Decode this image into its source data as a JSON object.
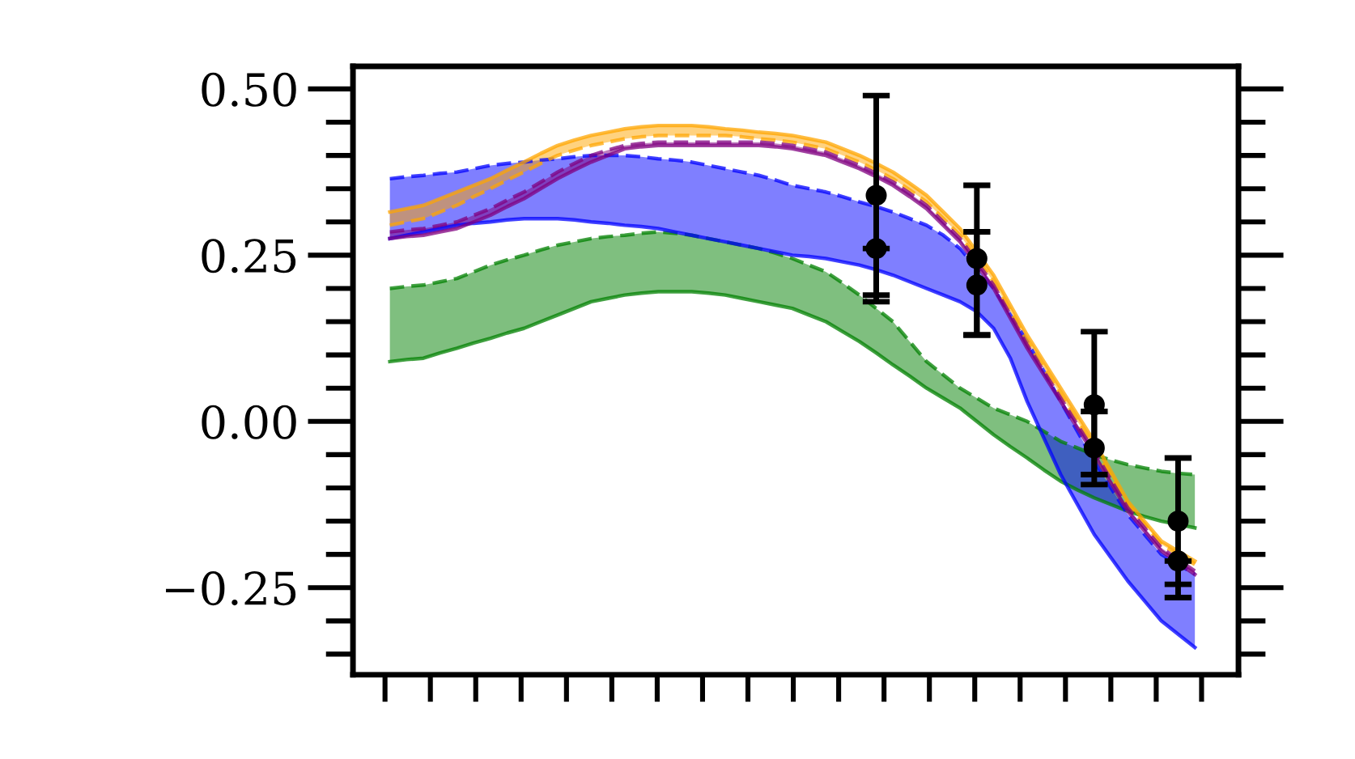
{
  "chart_data": {
    "type": "line",
    "categories": [
      null,
      null,
      null,
      null,
      null,
      null,
      null,
      null,
      null,
      null,
      null,
      null,
      null,
      null,
      null,
      null,
      null,
      null,
      null,
      null,
      null,
      null,
      null,
      null,
      null,
      null,
      null,
      null,
      null,
      null,
      null,
      null,
      null,
      null,
      null,
      null,
      null,
      null,
      null,
      null,
      null,
      null,
      null,
      null,
      null,
      null,
      null,
      null,
      null
    ],
    "ylim": [
      -0.381,
      0.534
    ],
    "yticks": [
      {
        "value": -0.25,
        "label": "−0.25"
      },
      {
        "value": 0,
        "label": "0.00"
      },
      {
        "value": 0.25,
        "label": "0.25"
      },
      {
        "value": 0.5,
        "label": "0.50"
      }
    ],
    "tick_labels": "y",
    "grid": false,
    "series": [
      {
        "color": "#008000",
        "line_style": "dashed",
        "values": [
          0.2,
          0.203,
          0.205,
          0.21,
          0.215,
          0.225,
          0.235,
          0.243,
          0.25,
          0.258,
          0.265,
          0.27,
          0.275,
          0.278,
          0.28,
          0.283,
          0.285,
          0.283,
          0.28,
          0.275,
          0.27,
          0.265,
          0.26,
          0.253,
          0.245,
          0.235,
          0.225,
          0.208,
          0.19,
          0.17,
          0.15,
          0.12,
          0.09,
          0.07,
          0.05,
          0.035,
          0.02,
          0.01,
          0.0,
          -0.015,
          -0.03,
          -0.04,
          -0.05,
          -0.058,
          -0.065,
          -0.07,
          -0.075,
          -0.078,
          -0.08
        ],
        "lower": [
          0.09,
          0.093,
          0.095,
          0.103,
          0.11,
          0.118,
          0.125,
          0.133,
          0.14,
          0.15,
          0.16,
          0.17,
          0.18,
          0.185,
          0.19,
          0.193,
          0.195,
          0.195,
          0.195,
          0.193,
          0.19,
          0.185,
          0.18,
          0.175,
          0.17,
          0.16,
          0.15,
          0.135,
          0.12,
          0.103,
          0.085,
          0.068,
          0.05,
          0.035,
          0.02,
          0.0,
          -0.02,
          -0.038,
          -0.055,
          -0.073,
          -0.09,
          -0.103,
          -0.115,
          -0.125,
          -0.135,
          -0.143,
          -0.15,
          -0.155,
          -0.16
        ],
        "upper": [
          0.2,
          0.203,
          0.205,
          0.21,
          0.215,
          0.225,
          0.235,
          0.243,
          0.25,
          0.258,
          0.265,
          0.27,
          0.275,
          0.278,
          0.28,
          0.283,
          0.285,
          0.283,
          0.28,
          0.275,
          0.27,
          0.265,
          0.26,
          0.253,
          0.245,
          0.235,
          0.225,
          0.208,
          0.19,
          0.17,
          0.15,
          0.12,
          0.09,
          0.07,
          0.05,
          0.035,
          0.02,
          0.01,
          0.0,
          -0.015,
          -0.03,
          -0.04,
          -0.05,
          -0.058,
          -0.065,
          -0.07,
          -0.075,
          -0.078,
          -0.08
        ]
      },
      {
        "color": "#008000",
        "line_style": "solid",
        "values": [
          0.09,
          0.093,
          0.095,
          0.103,
          0.11,
          0.118,
          0.125,
          0.133,
          0.14,
          0.15,
          0.16,
          0.17,
          0.18,
          0.185,
          0.19,
          0.193,
          0.195,
          0.195,
          0.195,
          0.193,
          0.19,
          0.185,
          0.18,
          0.175,
          0.17,
          0.16,
          0.15,
          0.135,
          0.12,
          0.103,
          0.085,
          0.068,
          0.05,
          0.035,
          0.02,
          0.0,
          -0.02,
          -0.038,
          -0.055,
          -0.073,
          -0.09,
          -0.103,
          -0.115,
          -0.125,
          -0.135,
          -0.143,
          -0.15,
          -0.155,
          -0.16
        ]
      },
      {
        "color": "#0000ff",
        "line_style": "dashed",
        "values": [
          0.365,
          0.368,
          0.37,
          0.373,
          0.375,
          0.38,
          0.385,
          0.388,
          0.39,
          0.393,
          0.395,
          0.398,
          0.4,
          0.4,
          0.4,
          0.398,
          0.395,
          0.393,
          0.39,
          0.385,
          0.38,
          0.375,
          0.37,
          0.363,
          0.355,
          0.35,
          0.345,
          0.338,
          0.33,
          0.323,
          0.315,
          0.305,
          0.295,
          0.28,
          0.26,
          0.23,
          0.2,
          0.16,
          0.12,
          0.075,
          0.03,
          -0.015,
          -0.06,
          -0.1,
          -0.14,
          -0.17,
          -0.2,
          -0.215,
          -0.23
        ],
        "lower": [
          0.275,
          0.28,
          0.285,
          0.29,
          0.295,
          0.298,
          0.3,
          0.303,
          0.305,
          0.305,
          0.305,
          0.303,
          0.3,
          0.298,
          0.295,
          0.293,
          0.29,
          0.285,
          0.28,
          0.275,
          0.27,
          0.265,
          0.26,
          0.255,
          0.25,
          0.248,
          0.245,
          0.24,
          0.235,
          0.228,
          0.22,
          0.21,
          0.2,
          0.19,
          0.18,
          0.165,
          0.14,
          0.095,
          0.03,
          -0.025,
          -0.08,
          -0.125,
          -0.17,
          -0.205,
          -0.24,
          -0.27,
          -0.3,
          -0.32,
          -0.34
        ],
        "upper": [
          0.365,
          0.368,
          0.37,
          0.373,
          0.375,
          0.38,
          0.385,
          0.388,
          0.39,
          0.393,
          0.395,
          0.398,
          0.4,
          0.4,
          0.4,
          0.398,
          0.395,
          0.393,
          0.39,
          0.385,
          0.38,
          0.375,
          0.37,
          0.363,
          0.355,
          0.35,
          0.345,
          0.338,
          0.33,
          0.323,
          0.315,
          0.305,
          0.295,
          0.28,
          0.26,
          0.23,
          0.2,
          0.16,
          0.12,
          0.075,
          0.03,
          -0.015,
          -0.06,
          -0.1,
          -0.14,
          -0.17,
          -0.2,
          -0.215,
          -0.23
        ]
      },
      {
        "color": "#0000ff",
        "line_style": "solid",
        "values": [
          0.275,
          0.28,
          0.285,
          0.29,
          0.295,
          0.298,
          0.3,
          0.303,
          0.305,
          0.305,
          0.305,
          0.303,
          0.3,
          0.298,
          0.295,
          0.293,
          0.29,
          0.285,
          0.28,
          0.275,
          0.27,
          0.265,
          0.26,
          0.255,
          0.25,
          0.248,
          0.245,
          0.24,
          0.235,
          0.228,
          0.22,
          0.21,
          0.2,
          0.19,
          0.18,
          0.165,
          0.14,
          0.095,
          0.03,
          -0.025,
          -0.08,
          -0.125,
          -0.17,
          -0.205,
          -0.24,
          -0.27,
          -0.3,
          -0.32,
          -0.34
        ]
      },
      {
        "color": "#ffa500",
        "line_style": "dashed",
        "values": [
          0.295,
          0.3,
          0.305,
          0.315,
          0.325,
          0.338,
          0.35,
          0.363,
          0.375,
          0.388,
          0.4,
          0.408,
          0.415,
          0.42,
          0.425,
          0.428,
          0.43,
          0.43,
          0.43,
          0.43,
          0.43,
          0.428,
          0.425,
          0.423,
          0.42,
          0.415,
          0.41,
          0.4,
          0.39,
          0.378,
          0.365,
          0.348,
          0.33,
          0.305,
          0.28,
          0.245,
          0.21,
          0.165,
          0.12,
          0.08,
          0.04,
          0.0,
          -0.04,
          -0.083,
          -0.125,
          -0.155,
          -0.185,
          -0.2,
          -0.215
        ],
        "lower": [
          0.295,
          0.3,
          0.305,
          0.315,
          0.325,
          0.338,
          0.35,
          0.363,
          0.375,
          0.388,
          0.4,
          0.408,
          0.415,
          0.42,
          0.425,
          0.428,
          0.43,
          0.43,
          0.43,
          0.43,
          0.43,
          0.428,
          0.425,
          0.423,
          0.42,
          0.415,
          0.41,
          0.4,
          0.39,
          0.378,
          0.365,
          0.348,
          0.33,
          0.305,
          0.28,
          0.245,
          0.21,
          0.165,
          0.12,
          0.08,
          0.04,
          0.0,
          -0.04,
          -0.083,
          -0.125,
          -0.155,
          -0.185,
          -0.2,
          -0.215
        ],
        "upper": [
          0.315,
          0.32,
          0.325,
          0.335,
          0.345,
          0.355,
          0.365,
          0.378,
          0.39,
          0.403,
          0.415,
          0.423,
          0.43,
          0.435,
          0.44,
          0.443,
          0.445,
          0.445,
          0.445,
          0.443,
          0.44,
          0.438,
          0.435,
          0.433,
          0.43,
          0.425,
          0.42,
          0.41,
          0.4,
          0.388,
          0.375,
          0.358,
          0.34,
          0.315,
          0.29,
          0.255,
          0.22,
          0.175,
          0.13,
          0.09,
          0.05,
          0.01,
          -0.03,
          -0.075,
          -0.12,
          -0.15,
          -0.18,
          -0.195,
          -0.21
        ]
      },
      {
        "color": "#ffa500",
        "line_style": "solid",
        "values": [
          0.315,
          0.32,
          0.325,
          0.335,
          0.345,
          0.355,
          0.365,
          0.378,
          0.39,
          0.403,
          0.415,
          0.423,
          0.43,
          0.435,
          0.44,
          0.443,
          0.445,
          0.445,
          0.445,
          0.443,
          0.44,
          0.438,
          0.435,
          0.433,
          0.43,
          0.425,
          0.42,
          0.41,
          0.4,
          0.388,
          0.375,
          0.358,
          0.34,
          0.315,
          0.29,
          0.255,
          0.22,
          0.175,
          0.13,
          0.09,
          0.05,
          0.01,
          -0.03,
          -0.075,
          -0.12,
          -0.15,
          -0.18,
          -0.195,
          -0.21
        ]
      },
      {
        "color": "#800080",
        "line_style": "dashed",
        "values": [
          0.285,
          0.288,
          0.29,
          0.295,
          0.3,
          0.31,
          0.32,
          0.333,
          0.345,
          0.36,
          0.375,
          0.388,
          0.4,
          0.408,
          0.415,
          0.418,
          0.42,
          0.42,
          0.42,
          0.42,
          0.42,
          0.42,
          0.42,
          0.418,
          0.415,
          0.41,
          0.405,
          0.395,
          0.385,
          0.373,
          0.36,
          0.343,
          0.325,
          0.3,
          0.275,
          0.24,
          0.205,
          0.16,
          0.115,
          0.075,
          0.035,
          -0.005,
          -0.045,
          -0.088,
          -0.13,
          -0.16,
          -0.19,
          -0.208,
          -0.225
        ],
        "lower": [
          0.275,
          0.278,
          0.28,
          0.285,
          0.29,
          0.3,
          0.31,
          0.323,
          0.335,
          0.35,
          0.365,
          0.378,
          0.39,
          0.4,
          0.41,
          0.413,
          0.415,
          0.415,
          0.415,
          0.415,
          0.415,
          0.415,
          0.415,
          0.413,
          0.41,
          0.405,
          0.4,
          0.39,
          0.38,
          0.368,
          0.355,
          0.338,
          0.32,
          0.295,
          0.27,
          0.235,
          0.2,
          0.155,
          0.11,
          0.07,
          0.03,
          -0.01,
          -0.05,
          -0.093,
          -0.135,
          -0.165,
          -0.195,
          -0.213,
          -0.23
        ],
        "upper": [
          0.285,
          0.288,
          0.29,
          0.295,
          0.3,
          0.31,
          0.32,
          0.333,
          0.345,
          0.36,
          0.375,
          0.388,
          0.4,
          0.408,
          0.415,
          0.418,
          0.42,
          0.42,
          0.42,
          0.42,
          0.42,
          0.42,
          0.42,
          0.418,
          0.415,
          0.41,
          0.405,
          0.395,
          0.385,
          0.373,
          0.36,
          0.343,
          0.325,
          0.3,
          0.275,
          0.24,
          0.205,
          0.16,
          0.115,
          0.075,
          0.035,
          -0.005,
          -0.045,
          -0.088,
          -0.13,
          -0.16,
          -0.19,
          -0.208,
          -0.225
        ]
      },
      {
        "color": "#800080",
        "line_style": "solid",
        "values": [
          0.275,
          0.278,
          0.28,
          0.285,
          0.29,
          0.3,
          0.31,
          0.323,
          0.335,
          0.35,
          0.365,
          0.378,
          0.39,
          0.4,
          0.41,
          0.413,
          0.415,
          0.415,
          0.415,
          0.415,
          0.415,
          0.415,
          0.415,
          0.413,
          0.41,
          0.405,
          0.4,
          0.39,
          0.38,
          0.368,
          0.355,
          0.338,
          0.32,
          0.295,
          0.27,
          0.235,
          0.2,
          0.155,
          0.11,
          0.07,
          0.03,
          -0.01,
          -0.05,
          -0.093,
          -0.135,
          -0.165,
          -0.195,
          -0.213,
          -0.23
        ]
      },
      {
        "type": "scatter",
        "color": "#000000",
        "marker": "circle",
        "values": [
          null,
          null,
          null,
          null,
          null,
          null,
          null,
          null,
          null,
          null,
          null,
          null,
          null,
          null,
          null,
          null,
          null,
          null,
          null,
          null,
          null,
          null,
          null,
          null,
          null,
          null,
          null,
          null,
          null,
          0.34,
          null,
          null,
          null,
          null,
          null,
          0.245,
          null,
          null,
          null,
          null,
          null,
          null,
          0.025,
          null,
          null,
          null,
          null,
          -0.15,
          null
        ],
        "errors": [
          null,
          null,
          null,
          null,
          null,
          null,
          null,
          null,
          null,
          null,
          null,
          null,
          null,
          null,
          null,
          null,
          null,
          null,
          null,
          null,
          null,
          null,
          null,
          null,
          null,
          null,
          null,
          null,
          null,
          [
            0.19,
            0.49
          ],
          null,
          null,
          null,
          null,
          null,
          [
            0.13,
            0.355
          ],
          null,
          null,
          null,
          null,
          null,
          null,
          [
            -0.08,
            0.135
          ],
          null,
          null,
          null,
          null,
          [
            -0.245,
            -0.055
          ],
          null
        ]
      },
      {
        "type": "scatter",
        "color": "#000000",
        "marker": "circle",
        "values": [
          null,
          null,
          null,
          null,
          null,
          null,
          null,
          null,
          null,
          null,
          null,
          null,
          null,
          null,
          null,
          null,
          null,
          null,
          null,
          null,
          null,
          null,
          null,
          null,
          null,
          null,
          null,
          null,
          null,
          0.26,
          null,
          null,
          null,
          null,
          null,
          0.205,
          null,
          null,
          null,
          null,
          null,
          null,
          -0.04,
          null,
          null,
          null,
          null,
          -0.21,
          null
        ],
        "errors": [
          null,
          null,
          null,
          null,
          null,
          null,
          null,
          null,
          null,
          null,
          null,
          null,
          null,
          null,
          null,
          null,
          null,
          null,
          null,
          null,
          null,
          null,
          null,
          null,
          null,
          null,
          null,
          null,
          null,
          [
            0.18,
            0.26
          ],
          null,
          null,
          null,
          null,
          null,
          [
            0.13,
            0.285
          ],
          null,
          null,
          null,
          null,
          null,
          null,
          [
            -0.095,
            0.015
          ],
          null,
          null,
          null,
          null,
          [
            -0.265,
            -0.21
          ],
          null
        ]
      }
    ]
  }
}
